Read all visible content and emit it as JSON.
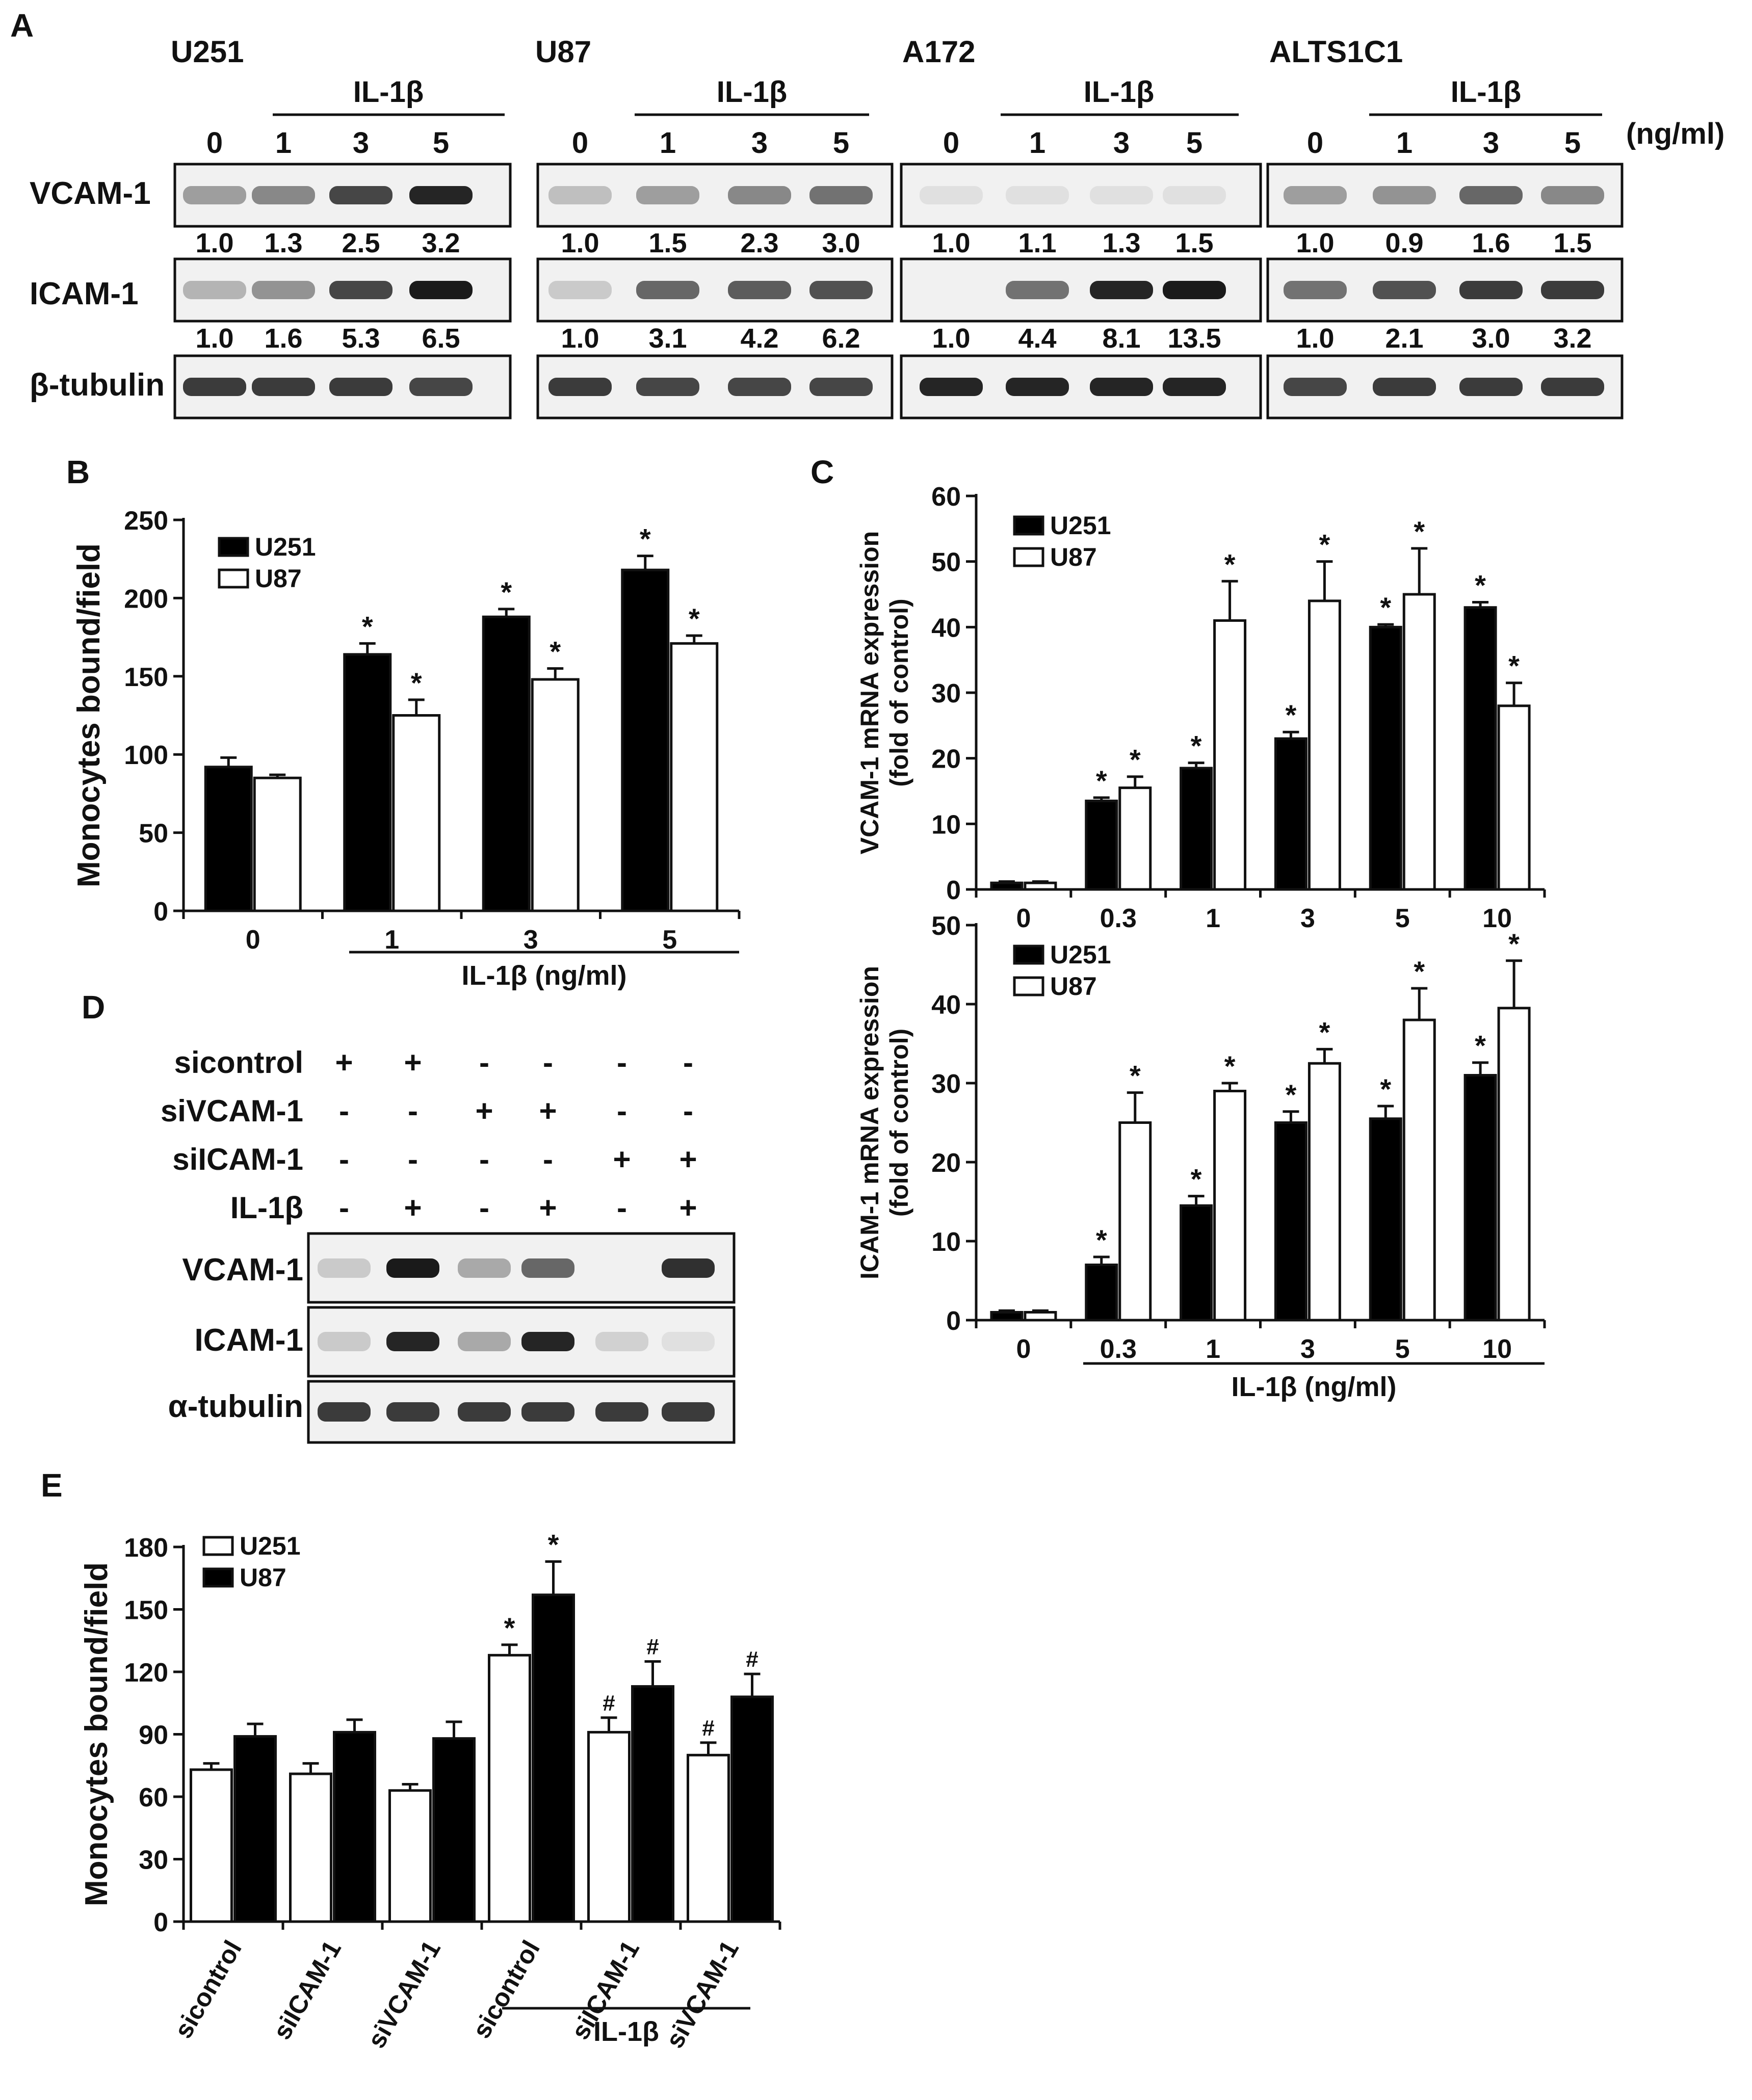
{
  "panel_labels": {
    "A": "A",
    "B": "B",
    "C": "C",
    "D": "D",
    "E": "E"
  },
  "panel_a": {
    "unit": "(ng/ml)",
    "il1b_label": "IL-1β",
    "row_labels": [
      "VCAM-1",
      "ICAM-1",
      "β-tubulin"
    ],
    "doses": [
      "0",
      "1",
      "3",
      "5"
    ],
    "cell_lines": [
      {
        "name": "U251",
        "vcam": [
          "1.0",
          "1.3",
          "2.5",
          "3.2"
        ],
        "icam": [
          "1.0",
          "1.6",
          "5.3",
          "6.5"
        ]
      },
      {
        "name": "U87",
        "vcam": [
          "1.0",
          "1.5",
          "2.3",
          "3.0"
        ],
        "icam": [
          "1.0",
          "3.1",
          "4.2",
          "6.2"
        ]
      },
      {
        "name": "A172",
        "vcam": [
          "1.0",
          "1.1",
          "1.3",
          "1.5"
        ],
        "icam": [
          "1.0",
          "4.4",
          "8.1",
          "13.5"
        ]
      },
      {
        "name": "ALTS1C1",
        "vcam": [
          "1.0",
          "0.9",
          "1.6",
          "1.5"
        ],
        "icam": [
          "1.0",
          "2.1",
          "3.0",
          "3.2"
        ]
      }
    ],
    "band_intensity": [
      {
        "vcam": [
          0.35,
          0.45,
          0.75,
          0.9
        ],
        "icam": [
          0.25,
          0.4,
          0.75,
          0.95
        ],
        "tub": [
          0.8,
          0.8,
          0.8,
          0.75
        ]
      },
      {
        "vcam": [
          0.2,
          0.35,
          0.45,
          0.55
        ],
        "icam": [
          0.15,
          0.6,
          0.65,
          0.7
        ],
        "tub": [
          0.8,
          0.75,
          0.75,
          0.75
        ]
      },
      {
        "vcam": [
          0.05,
          0.05,
          0.05,
          0.05
        ],
        "icam": [
          0.0,
          0.55,
          0.9,
          0.95
        ],
        "tub": [
          0.9,
          0.9,
          0.9,
          0.9
        ]
      },
      {
        "vcam": [
          0.35,
          0.4,
          0.6,
          0.45
        ],
        "icam": [
          0.55,
          0.7,
          0.8,
          0.8
        ],
        "tub": [
          0.75,
          0.8,
          0.8,
          0.8
        ]
      }
    ]
  },
  "chart_data": [
    {
      "id": "B",
      "type": "bar",
      "ylabel": "Monocytes bound/field",
      "xlabel": "IL-1β (ng/ml)",
      "categories": [
        "0",
        "1",
        "3",
        "5"
      ],
      "ylim": [
        0,
        250
      ],
      "yticks": [
        0,
        50,
        100,
        150,
        200,
        250
      ],
      "series": [
        {
          "name": "U251",
          "color": "#000000",
          "values": [
            92,
            164,
            188,
            218
          ],
          "errors": [
            6,
            7,
            5,
            9
          ],
          "sig": [
            "",
            "*",
            "*",
            "*"
          ]
        },
        {
          "name": "U87",
          "color": "#ffffff",
          "values": [
            85,
            125,
            148,
            171
          ],
          "errors": [
            2,
            10,
            7,
            5
          ],
          "sig": [
            "",
            "*",
            "*",
            "*"
          ]
        }
      ]
    },
    {
      "id": "C1",
      "type": "bar",
      "ylabel": [
        "VCAM-1 mRNA expression",
        "(fold of control)"
      ],
      "xlabel": "",
      "categories": [
        "0",
        "0.3",
        "1",
        "3",
        "5",
        "10"
      ],
      "ylim": [
        0,
        60
      ],
      "yticks": [
        0,
        10,
        20,
        30,
        40,
        50,
        60
      ],
      "series": [
        {
          "name": "U251",
          "color": "#000000",
          "values": [
            1,
            13.5,
            18.5,
            23,
            40,
            43
          ],
          "errors": [
            0.2,
            0.5,
            0.8,
            1,
            0.4,
            0.8
          ],
          "sig": [
            "",
            "*",
            "*",
            "*",
            "*",
            "*"
          ]
        },
        {
          "name": "U87",
          "color": "#ffffff",
          "values": [
            1,
            15.5,
            41,
            44,
            45,
            28
          ],
          "errors": [
            0.2,
            1.7,
            6,
            6,
            7,
            3.5
          ],
          "sig": [
            "",
            "*",
            "*",
            "*",
            "*",
            "*"
          ]
        }
      ]
    },
    {
      "id": "C2",
      "type": "bar",
      "ylabel": [
        "ICAM-1 mRNA expression",
        "(fold of control)"
      ],
      "xlabel": "IL-1β  (ng/ml)",
      "categories": [
        "0",
        "0.3",
        "1",
        "3",
        "5",
        "10"
      ],
      "ylim": [
        0,
        50
      ],
      "yticks": [
        0,
        10,
        20,
        30,
        40,
        50
      ],
      "series": [
        {
          "name": "U251",
          "color": "#000000",
          "values": [
            1,
            7,
            14.5,
            25,
            25.5,
            31
          ],
          "errors": [
            0.2,
            1,
            1.2,
            1.4,
            1.6,
            1.6
          ],
          "sig": [
            "",
            "*",
            "*",
            "*",
            "*",
            "*"
          ]
        },
        {
          "name": "U87",
          "color": "#ffffff",
          "values": [
            1,
            25,
            29,
            32.5,
            38,
            39.5
          ],
          "errors": [
            0.2,
            3.8,
            1,
            1.8,
            4,
            6
          ],
          "sig": [
            "",
            "*",
            "*",
            "*",
            "*",
            "*"
          ]
        }
      ]
    },
    {
      "id": "E",
      "type": "bar",
      "ylabel": "Monocytes bound/field",
      "xlabel": "IL-1β",
      "categories": [
        "sicontrol",
        "siICAM-1",
        "siVCAM-1",
        "sicontrol",
        "siICAM-1",
        "siVCAM-1"
      ],
      "ylim": [
        0,
        180
      ],
      "yticks": [
        0,
        30,
        60,
        90,
        120,
        150,
        180
      ],
      "series": [
        {
          "name": "U251",
          "color": "#ffffff",
          "values": [
            73,
            71,
            63,
            128,
            91,
            80
          ],
          "errors": [
            3,
            5,
            3,
            5,
            7,
            6
          ],
          "sig": [
            "",
            "",
            "",
            "*",
            "#",
            "#"
          ]
        },
        {
          "name": "U87",
          "color": "#000000",
          "values": [
            89,
            91,
            88,
            157,
            113,
            108
          ],
          "errors": [
            6,
            6,
            8,
            16,
            12,
            11
          ],
          "sig": [
            "",
            "",
            "",
            "*",
            "#",
            "#"
          ]
        }
      ]
    }
  ],
  "panel_d": {
    "condition_labels": [
      "sicontrol",
      "siVCAM-1",
      "siICAM-1",
      "IL-1β"
    ],
    "conditions": [
      [
        "+",
        "+",
        "-",
        "-",
        "-",
        "-"
      ],
      [
        "-",
        "-",
        "+",
        "+",
        "-",
        "-"
      ],
      [
        "-",
        "-",
        "-",
        "-",
        "+",
        "+"
      ],
      [
        "-",
        "+",
        "-",
        "+",
        "-",
        "+"
      ]
    ],
    "blot_labels": [
      "VCAM-1",
      "ICAM-1",
      "α-tubulin"
    ],
    "band_intensity": {
      "vcam": [
        0.15,
        0.95,
        0.3,
        0.6,
        0.0,
        0.85
      ],
      "icam": [
        0.15,
        0.9,
        0.3,
        0.9,
        0.12,
        0.05
      ],
      "tub": [
        0.8,
        0.8,
        0.8,
        0.8,
        0.8,
        0.8
      ]
    }
  }
}
